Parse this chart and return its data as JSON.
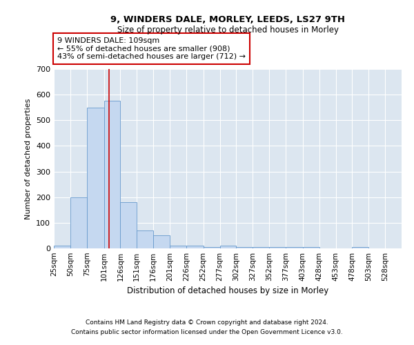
{
  "title1": "9, WINDERS DALE, MORLEY, LEEDS, LS27 9TH",
  "title2": "Size of property relative to detached houses in Morley",
  "xlabel": "Distribution of detached houses by size in Morley",
  "ylabel": "Number of detached properties",
  "annotation_line1": "9 WINDERS DALE: 109sqm",
  "annotation_line2": "← 55% of detached houses are smaller (908)",
  "annotation_line3": "43% of semi-detached houses are larger (712) →",
  "bar_edges": [
    25,
    50,
    75,
    101,
    126,
    151,
    176,
    201,
    226,
    252,
    277,
    302,
    327,
    352,
    377,
    403,
    428,
    453,
    478,
    503,
    528,
    553
  ],
  "bar_heights": [
    10,
    200,
    550,
    575,
    180,
    70,
    50,
    10,
    10,
    5,
    10,
    5,
    5,
    5,
    5,
    5,
    0,
    0,
    5,
    0,
    0
  ],
  "bar_color": "#c5d8f0",
  "bar_edgecolor": "#6699cc",
  "vline_x": 109,
  "vline_color": "#cc0000",
  "ylim": [
    0,
    700
  ],
  "yticks": [
    0,
    100,
    200,
    300,
    400,
    500,
    600,
    700
  ],
  "grid_color": "#ffffff",
  "axes_bg_color": "#dce6f0",
  "footer1": "Contains HM Land Registry data © Crown copyright and database right 2024.",
  "footer2": "Contains public sector information licensed under the Open Government Licence v3.0."
}
